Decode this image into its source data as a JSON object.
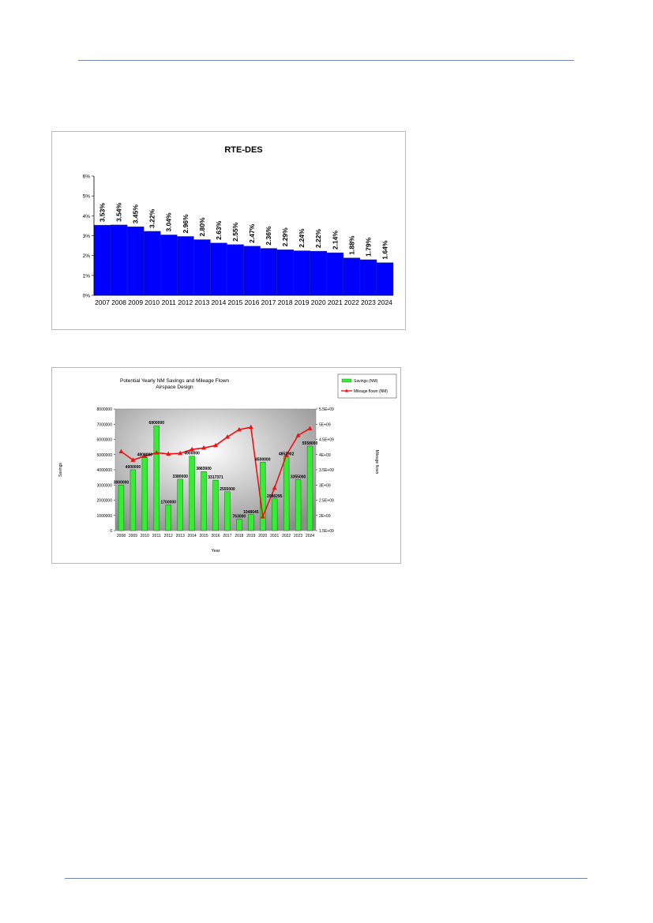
{
  "chart_data": [
    {
      "type": "bar",
      "title": "RTE-DES",
      "categories": [
        "2007",
        "2008",
        "2009",
        "2010",
        "2011",
        "2012",
        "2013",
        "2014",
        "2015",
        "2016",
        "2017",
        "2018",
        "2019",
        "2020",
        "2021",
        "2022",
        "2023",
        "2024"
      ],
      "values": [
        3.53,
        3.54,
        3.45,
        3.22,
        3.04,
        2.96,
        2.8,
        2.63,
        2.55,
        2.47,
        2.36,
        2.29,
        2.24,
        2.22,
        2.14,
        1.88,
        1.79,
        1.64
      ],
      "data_labels": [
        "3.53%",
        "3.54%",
        "3.45%",
        "3.22%",
        "3.04%",
        "2.96%",
        "2.80%",
        "2.63%",
        "2.55%",
        "2.47%",
        "2.36%",
        "2.29%",
        "2.24%",
        "2.22%",
        "2.14%",
        "1.88%",
        "1.79%",
        "1.64%"
      ],
      "y_ticks": [
        "0%",
        "1%",
        "2%",
        "3%",
        "4%",
        "5%",
        "6%"
      ],
      "ylim": [
        0,
        6
      ],
      "bar_color": "#0000ff",
      "grid": false,
      "legend": "none"
    },
    {
      "type": "bar+line",
      "title": "Potential Yearly NM Savings and Mileage Flown",
      "subtitle": "Airspace Design",
      "xlabel": "Year",
      "ylabel": "Savings",
      "y2label": "Mileage flown",
      "categories": [
        "2008",
        "2009",
        "2010",
        "2011",
        "2012",
        "2013",
        "2014",
        "2015",
        "2016",
        "2017",
        "2018",
        "2019",
        "2020",
        "2021",
        "2022",
        "2023",
        "2024"
      ],
      "series": [
        {
          "name": "Savings (NM)",
          "type": "bar",
          "axis": "left",
          "color": "#33ee33",
          "values": [
            3000000,
            4000000,
            4800000,
            6900000,
            1700000,
            3380000,
            4900000,
            3883900,
            3317371,
            2555000,
            763000,
            1048645,
            4500000,
            2088295,
            4857902,
            3355000,
            5558000
          ],
          "labels": [
            "3000000",
            "4000000",
            "4800000",
            "6900000",
            "1700000",
            "3380000",
            "4900000",
            "3883900",
            "3317371",
            "2555000",
            "763000",
            "1048645",
            "4500000",
            "2088295",
            "4857902",
            "3355000",
            "5558000"
          ]
        },
        {
          "name": "Mileage flown (NM)",
          "type": "line",
          "axis": "right",
          "color": "#ee1111",
          "marker": "triangle",
          "values": [
            4100000000.0,
            3820000000.0,
            3950000000.0,
            4060000000.0,
            4020000000.0,
            4040000000.0,
            4170000000.0,
            4220000000.0,
            4300000000.0,
            4580000000.0,
            4820000000.0,
            4900000000.0,
            1960000000.0,
            2900000000.0,
            3980000000.0,
            4630000000.0,
            4860000000.0
          ]
        }
      ],
      "y_ticks": [
        "0",
        "1000000",
        "2000000",
        "3000000",
        "4000000",
        "5000000",
        "6000000",
        "7000000",
        "8000000"
      ],
      "ylim": [
        0,
        8000000
      ],
      "y2_ticks": [
        "1.5E+09",
        "2E+09",
        "2.5E+09",
        "3E+09",
        "3.5E+09",
        "4E+09",
        "4.5E+09",
        "5E+09",
        "5.5E+09"
      ],
      "y2lim": [
        1500000000,
        5500000000
      ],
      "legend": "top-right",
      "plot_background": "radial gray gradient"
    }
  ]
}
